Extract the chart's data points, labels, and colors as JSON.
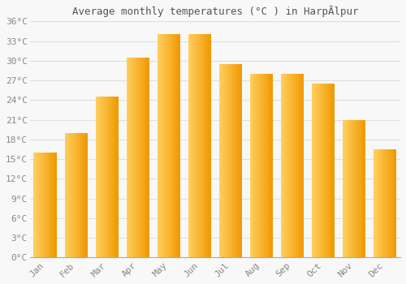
{
  "title": "Average monthly temperatures (°C ) in HarpĀlpur",
  "months": [
    "Jan",
    "Feb",
    "Mar",
    "Apr",
    "May",
    "Jun",
    "Jul",
    "Aug",
    "Sep",
    "Oct",
    "Nov",
    "Dec"
  ],
  "values": [
    16.0,
    19.0,
    24.5,
    30.5,
    34.0,
    34.0,
    29.5,
    28.0,
    28.0,
    26.5,
    21.0,
    16.5
  ],
  "bar_color_light": "#FFD060",
  "bar_color_dark": "#F5A000",
  "ylim": [
    0,
    36
  ],
  "ytick_step": 3,
  "background_color": "#f8f8f8",
  "grid_color": "#e0e0e0",
  "title_fontsize": 9,
  "tick_fontsize": 8,
  "tick_label_color": "#888888",
  "title_color": "#555555"
}
